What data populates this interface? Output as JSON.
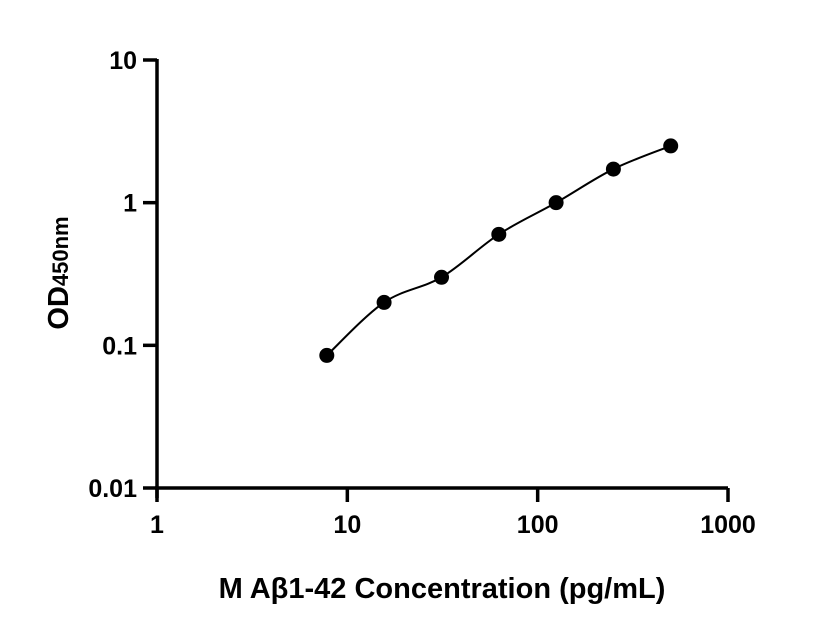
{
  "chart_data": {
    "type": "scatter",
    "title": "",
    "xlabel": "M Aβ1-42 Concentration (pg/mL)",
    "ylabel_main": "OD",
    "ylabel_sub": "450nm",
    "xscale": "log",
    "yscale": "log",
    "xlim": [
      1,
      1000
    ],
    "ylim": [
      0.01,
      10
    ],
    "xticks": [
      "1",
      "10",
      "100",
      "1000"
    ],
    "yticks": [
      "0.01",
      "0.1",
      "1",
      "10"
    ],
    "grid": false,
    "fit_curve": true,
    "points": [
      {
        "x": 7.8,
        "y": 0.085
      },
      {
        "x": 15.6,
        "y": 0.2
      },
      {
        "x": 31.25,
        "y": 0.3
      },
      {
        "x": 62.5,
        "y": 0.6
      },
      {
        "x": 125,
        "y": 1.0
      },
      {
        "x": 250,
        "y": 1.72
      },
      {
        "x": 500,
        "y": 2.5
      }
    ],
    "colors": {
      "marker": "#000000",
      "line": "#000000"
    }
  }
}
